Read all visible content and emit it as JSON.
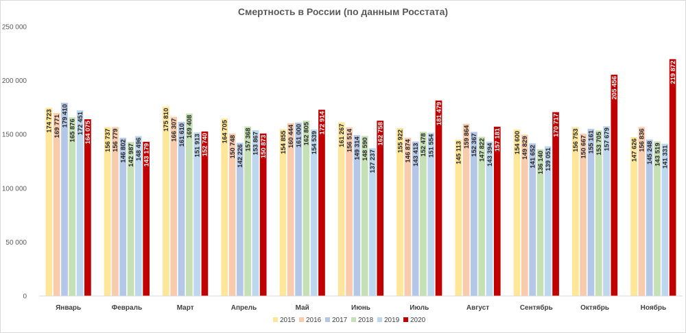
{
  "chart_data": {
    "type": "bar",
    "title": "Смертность в России (по данным Росстата)",
    "xlabel": "",
    "ylabel": "",
    "ylim": [
      0,
      250000
    ],
    "yticks": [
      0,
      50000,
      100000,
      150000,
      200000,
      250000
    ],
    "ytick_labels": [
      "0",
      "50 000",
      "100 000",
      "150 000",
      "200 000",
      "250 000"
    ],
    "grid": false,
    "legend_position": "bottom",
    "categories": [
      "Январь",
      "Февраль",
      "Март",
      "Апрель",
      "Май",
      "Июнь",
      "Июль",
      "Август",
      "Сентябрь",
      "Октябрь",
      "Ноябрь"
    ],
    "series": [
      {
        "name": "2015",
        "color": "#ffe699",
        "values": [
          174723,
          156737,
          175810,
          164705,
          154855,
          161267,
          155922,
          145113,
          154600,
          156753,
          147626
        ],
        "labels": [
          "174 723",
          "156 737",
          "175 810",
          "164 705",
          "154 855",
          "161 267",
          "155 922",
          "145 113",
          "154 600",
          "156 753",
          "147 626"
        ]
      },
      {
        "name": "2016",
        "color": "#f8cbad",
        "values": [
          169771,
          156779,
          166307,
          150748,
          160444,
          156514,
          146874,
          159864,
          149829,
          150667,
          156836
        ],
        "labels": [
          "169 771",
          "156 779",
          "166 307",
          "150 748",
          "160 444",
          "156 514",
          "146 874",
          "159 864",
          "149 829",
          "150 667",
          "156 836"
        ]
      },
      {
        "name": "2017",
        "color": "#b4c7e7",
        "values": [
          179410,
          146802,
          161610,
          142226,
          161000,
          149314,
          143413,
          152367,
          141652,
          155161,
          145248
        ]
      },
      {
        "name": "2018",
        "color": "#c5e0b4",
        "values": [
          165876,
          142987,
          169408,
          157368,
          162805,
          148590,
          152478,
          147822,
          136140,
          153705,
          143519
        ],
        "labels": [
          "165 876",
          "142 987",
          "169 408",
          "157 368",
          "162 805",
          "148 590",
          "152 478",
          "147 822",
          "136 140",
          "153 705",
          "143 519"
        ]
      },
      {
        "name": "2019",
        "color": "#bdd7ee",
        "values": [
          172451,
          148496,
          151913,
          153867,
          154539,
          137237,
          151554,
          143394,
          139051,
          157679,
          141331
        ],
        "labels": [
          "172 451",
          "148 496",
          "151 913",
          "153 867",
          "154 539",
          "137 237",
          "151 554",
          "143 394",
          "139 051",
          "157 679",
          "141 331"
        ]
      },
      {
        "name": "2020",
        "color": "#c00000",
        "values": [
          164075,
          143179,
          152740,
          150873,
          172914,
          162758,
          181479,
          157181,
          170717,
          205456,
          219872
        ],
        "labels": [
          "164 075",
          "143 179",
          "152 740",
          "150 873",
          "172 914",
          "162 758",
          "181 479",
          "157 181",
          "170 717",
          "205 456",
          "219 872"
        ]
      }
    ]
  }
}
